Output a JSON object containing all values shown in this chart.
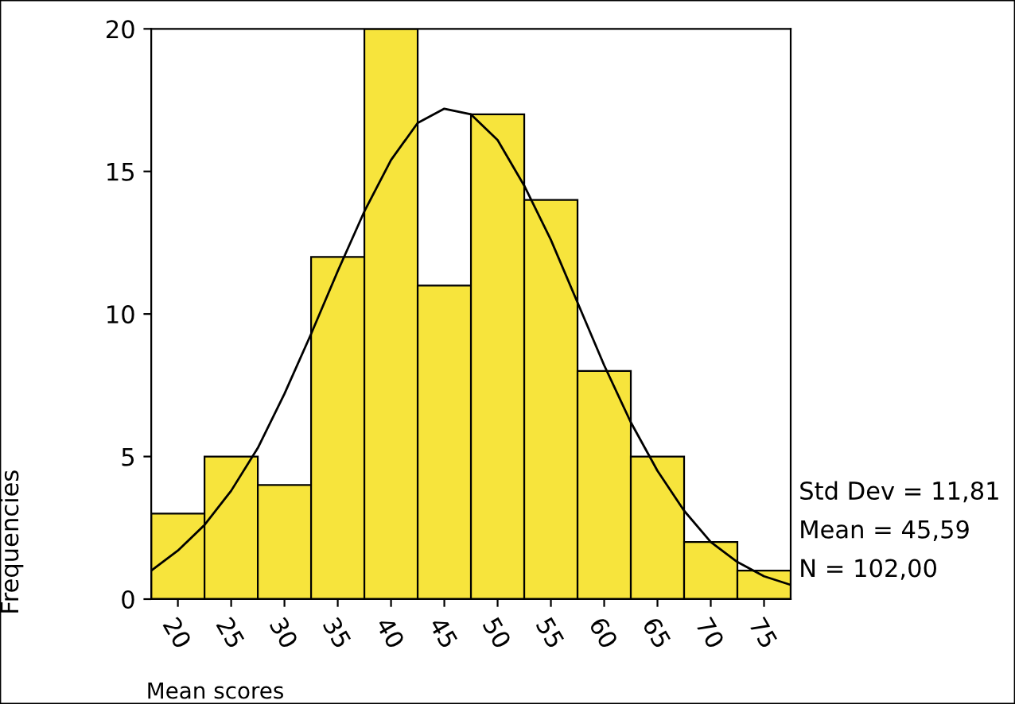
{
  "chart_data": {
    "type": "histogram",
    "xlabel": "Mean scores",
    "ylabel": "Frequencies",
    "bins": [
      17.5,
      22.5,
      27.5,
      32.5,
      37.5,
      42.5,
      47.5,
      52.5,
      57.5,
      62.5,
      67.5,
      72.5,
      77.5
    ],
    "values": [
      3,
      5,
      4,
      12,
      20,
      11,
      17,
      14,
      8,
      5,
      2,
      1
    ],
    "color": "#f7e43c",
    "series": [
      {
        "type": "line",
        "color": "#000000",
        "x": [
          17.5,
          20,
          22.5,
          25,
          27.5,
          30,
          32.5,
          35,
          37.5,
          40,
          42.5,
          45,
          47.5,
          50,
          52.5,
          55,
          57.5,
          60,
          62.5,
          65,
          67.5,
          70,
          72.5,
          75,
          77.5
        ],
        "values": [
          1.0,
          1.7,
          2.6,
          3.8,
          5.3,
          7.2,
          9.3,
          11.5,
          13.6,
          15.4,
          16.7,
          17.2,
          17.0,
          16.1,
          14.5,
          12.6,
          10.4,
          8.2,
          6.2,
          4.5,
          3.1,
          2.0,
          1.3,
          0.8,
          0.5
        ]
      }
    ],
    "xlim": [
      17.5,
      77.5
    ],
    "ylim": [
      0,
      20
    ],
    "xticks": [
      20,
      25,
      30,
      35,
      40,
      45,
      50,
      55,
      60,
      65,
      70,
      75
    ],
    "yticks": [
      0,
      5,
      10,
      15,
      20
    ],
    "grid": false,
    "legend": false,
    "annotations": [
      "Std Dev = 11,81",
      "Mean = 45,59",
      "N = 102,00"
    ]
  }
}
